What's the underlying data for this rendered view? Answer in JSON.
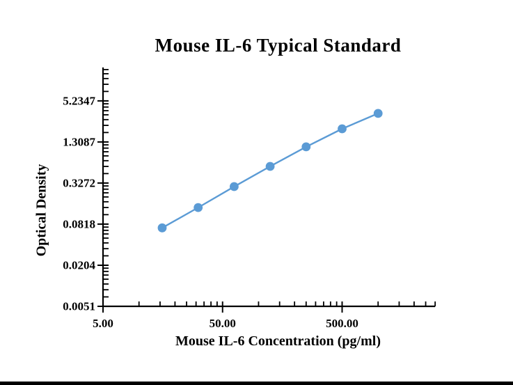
{
  "page": {
    "background_color": "#ffffff",
    "bottom_bar_color": "#000000"
  },
  "chart_data": {
    "type": "line",
    "title": "Mouse IL-6 Typical Standard",
    "xlabel": "Mouse IL-6 Concentration (pg/ml)",
    "ylabel": "Optical Density",
    "x_scale": "log",
    "y_scale": "log",
    "grid": false,
    "legend": "none",
    "x_range": [
      5,
      3000
    ],
    "y_range": [
      0.0051,
      16.2
    ],
    "x_ticks": [
      {
        "value": 5,
        "label": "5.00"
      },
      {
        "value": 50,
        "label": "50.00"
      },
      {
        "value": 500,
        "label": "500.00"
      }
    ],
    "y_ticks": [
      {
        "value": 5.2347,
        "label": "5.2347"
      },
      {
        "value": 1.3087,
        "label": "1.3087"
      },
      {
        "value": 0.3272,
        "label": "0.3272"
      },
      {
        "value": 0.0818,
        "label": "0.0818"
      },
      {
        "value": 0.0204,
        "label": "0.0204"
      },
      {
        "value": 0.0051,
        "label": "0.0051"
      }
    ],
    "series": [
      {
        "name": "Typical Standard",
        "marker": "circle",
        "color": "#5B9BD5",
        "points": [
          {
            "x": 15.625,
            "y": 0.072
          },
          {
            "x": 31.25,
            "y": 0.143
          },
          {
            "x": 62.5,
            "y": 0.29
          },
          {
            "x": 125,
            "y": 0.574
          },
          {
            "x": 250,
            "y": 1.11
          },
          {
            "x": 500,
            "y": 2.04
          },
          {
            "x": 1000,
            "y": 3.43
          }
        ]
      }
    ],
    "axis_color": "#000000",
    "text_color": "#000000"
  }
}
